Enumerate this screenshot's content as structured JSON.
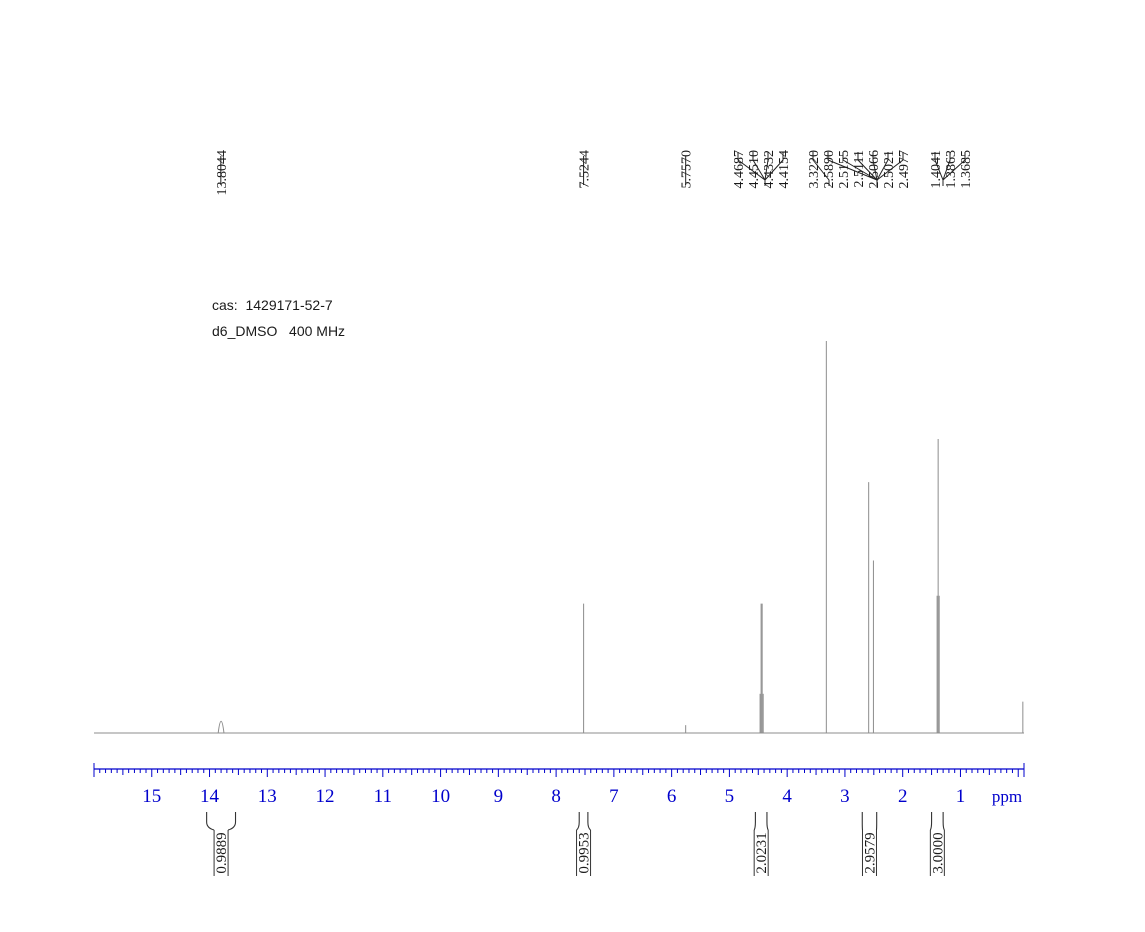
{
  "chart_data": {
    "type": "nmr_spectrum",
    "info_lines": [
      "cas:  1429171-52-7",
      "d6_DMSO   400 MHz"
    ],
    "x_unit_label": "ppm",
    "x_range": [
      16.0,
      -0.1
    ],
    "x_reversed": true,
    "x_ticks": [
      15,
      14,
      13,
      12,
      11,
      10,
      9,
      8,
      7,
      6,
      5,
      4,
      3,
      2,
      1
    ],
    "peak_labels": [
      "13.8044",
      "7.5244",
      "5.7570",
      "4.4687",
      "4.4510",
      "4.4332",
      "4.4154",
      "3.3220",
      "2.5890",
      "2.5155",
      "2.5111",
      "2.5066",
      "2.5021",
      "2.4977",
      "1.4041",
      "1.3863",
      "1.3685"
    ],
    "peaks": [
      {
        "ppm": 13.8,
        "height": 0.03,
        "width": 0.05
      },
      {
        "ppm": 7.524,
        "height": 0.33
      },
      {
        "ppm": 5.757,
        "height": 0.02
      },
      {
        "ppm": 4.4687,
        "height": 0.1
      },
      {
        "ppm": 4.451,
        "height": 0.33
      },
      {
        "ppm": 4.4332,
        "height": 0.33
      },
      {
        "ppm": 4.4154,
        "height": 0.1
      },
      {
        "ppm": 3.322,
        "height": 1.0
      },
      {
        "ppm": 2.589,
        "height": 0.64
      },
      {
        "ppm": 2.5066,
        "height": 0.44
      },
      {
        "ppm": 1.4041,
        "height": 0.35
      },
      {
        "ppm": 1.3863,
        "height": 0.75
      },
      {
        "ppm": 1.3685,
        "height": 0.35
      },
      {
        "ppm": -0.08,
        "height": 0.08
      }
    ],
    "integrals": [
      {
        "value": "0.9889",
        "from": 14.05,
        "to": 13.55
      },
      {
        "value": "0.9953",
        "from": 7.6,
        "to": 7.45
      },
      {
        "value": "2.0231",
        "from": 4.55,
        "to": 4.35
      },
      {
        "value": "2.9579",
        "from": 2.7,
        "to": 2.45
      },
      {
        "value": "3.0000",
        "from": 1.5,
        "to": 1.3
      }
    ],
    "colors": {
      "axis": "#0000cc",
      "spectrum": "#8c8c8c",
      "labels": "#1a1a1a"
    }
  }
}
